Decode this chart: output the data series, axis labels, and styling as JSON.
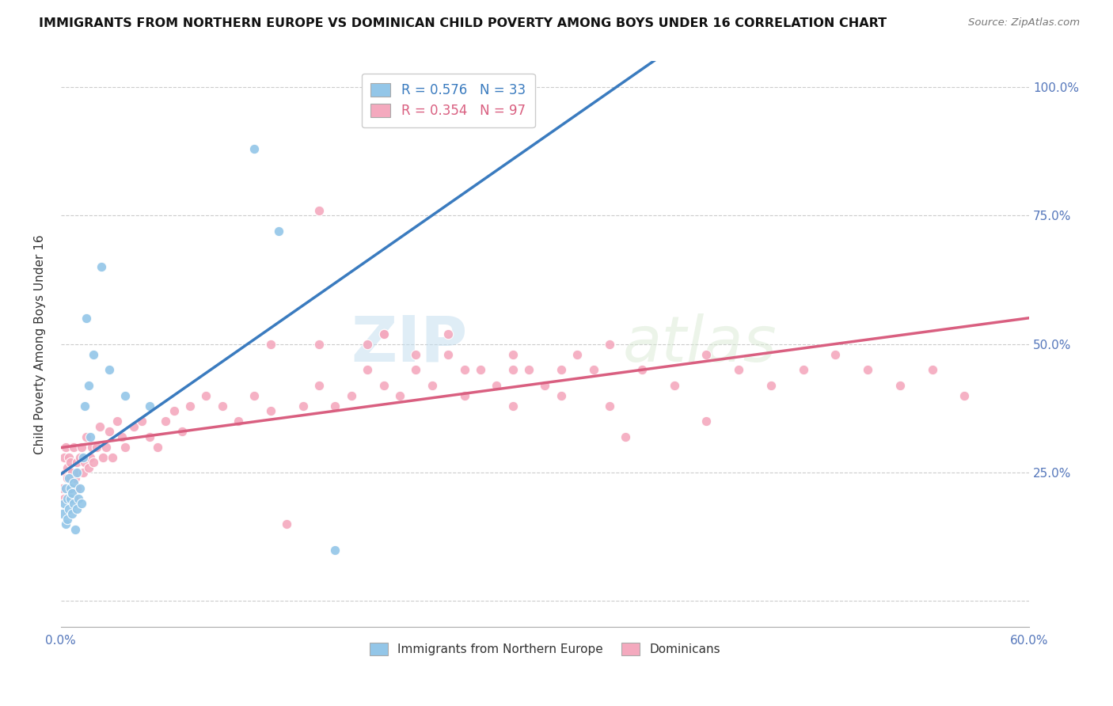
{
  "title": "IMMIGRANTS FROM NORTHERN EUROPE VS DOMINICAN CHILD POVERTY AMONG BOYS UNDER 16 CORRELATION CHART",
  "source": "Source: ZipAtlas.com",
  "ylabel": "Child Poverty Among Boys Under 16",
  "xlim": [
    0.0,
    0.6
  ],
  "ylim": [
    -0.05,
    1.05
  ],
  "xticks": [
    0.0,
    0.1,
    0.2,
    0.3,
    0.4,
    0.5,
    0.6
  ],
  "xticklabels": [
    "0.0%",
    "",
    "",
    "",
    "",
    "",
    "60.0%"
  ],
  "yticks": [
    0.0,
    0.25,
    0.5,
    0.75,
    1.0
  ],
  "yticklabels": [
    "",
    "25.0%",
    "50.0%",
    "75.0%",
    "100.0%"
  ],
  "blue_R": 0.576,
  "blue_N": 33,
  "pink_R": 0.354,
  "pink_N": 97,
  "blue_color": "#93c6e8",
  "pink_color": "#f4a9be",
  "blue_line_color": "#3a7bbf",
  "pink_line_color": "#d95f80",
  "legend_label_blue": "Immigrants from Northern Europe",
  "legend_label_pink": "Dominicans",
  "blue_scatter_x": [
    0.001,
    0.002,
    0.003,
    0.003,
    0.004,
    0.004,
    0.005,
    0.005,
    0.006,
    0.006,
    0.007,
    0.007,
    0.008,
    0.008,
    0.009,
    0.01,
    0.01,
    0.011,
    0.012,
    0.013,
    0.014,
    0.015,
    0.016,
    0.017,
    0.018,
    0.02,
    0.025,
    0.03,
    0.04,
    0.055,
    0.12,
    0.135,
    0.17
  ],
  "blue_scatter_y": [
    0.17,
    0.19,
    0.15,
    0.22,
    0.16,
    0.2,
    0.18,
    0.24,
    0.2,
    0.22,
    0.17,
    0.21,
    0.19,
    0.23,
    0.14,
    0.18,
    0.25,
    0.2,
    0.22,
    0.19,
    0.28,
    0.38,
    0.55,
    0.42,
    0.32,
    0.48,
    0.65,
    0.45,
    0.4,
    0.38,
    0.88,
    0.72,
    0.1
  ],
  "pink_scatter_x": [
    0.001,
    0.002,
    0.002,
    0.003,
    0.003,
    0.004,
    0.004,
    0.005,
    0.005,
    0.006,
    0.006,
    0.007,
    0.007,
    0.008,
    0.008,
    0.009,
    0.01,
    0.01,
    0.011,
    0.012,
    0.013,
    0.014,
    0.015,
    0.016,
    0.017,
    0.018,
    0.019,
    0.02,
    0.022,
    0.024,
    0.026,
    0.028,
    0.03,
    0.032,
    0.035,
    0.038,
    0.04,
    0.045,
    0.05,
    0.055,
    0.06,
    0.065,
    0.07,
    0.075,
    0.08,
    0.09,
    0.1,
    0.11,
    0.12,
    0.13,
    0.14,
    0.15,
    0.16,
    0.17,
    0.18,
    0.19,
    0.2,
    0.21,
    0.22,
    0.23,
    0.24,
    0.25,
    0.26,
    0.27,
    0.28,
    0.29,
    0.3,
    0.31,
    0.32,
    0.33,
    0.34,
    0.36,
    0.38,
    0.4,
    0.42,
    0.44,
    0.46,
    0.48,
    0.5,
    0.52,
    0.54,
    0.56,
    0.13,
    0.16,
    0.19,
    0.22,
    0.25,
    0.28,
    0.31,
    0.34,
    0.16,
    0.2,
    0.24,
    0.28,
    0.2,
    0.35,
    0.4
  ],
  "pink_scatter_y": [
    0.22,
    0.28,
    0.2,
    0.25,
    0.3,
    0.24,
    0.26,
    0.22,
    0.28,
    0.24,
    0.27,
    0.22,
    0.25,
    0.3,
    0.2,
    0.24,
    0.27,
    0.22,
    0.25,
    0.28,
    0.3,
    0.25,
    0.27,
    0.32,
    0.26,
    0.28,
    0.3,
    0.27,
    0.3,
    0.34,
    0.28,
    0.3,
    0.33,
    0.28,
    0.35,
    0.32,
    0.3,
    0.34,
    0.35,
    0.32,
    0.3,
    0.35,
    0.37,
    0.33,
    0.38,
    0.4,
    0.38,
    0.35,
    0.4,
    0.37,
    0.15,
    0.38,
    0.42,
    0.38,
    0.4,
    0.45,
    0.42,
    0.4,
    0.45,
    0.42,
    0.48,
    0.4,
    0.45,
    0.42,
    0.48,
    0.45,
    0.42,
    0.45,
    0.48,
    0.45,
    0.5,
    0.45,
    0.42,
    0.48,
    0.45,
    0.42,
    0.45,
    0.48,
    0.45,
    0.42,
    0.45,
    0.4,
    0.5,
    0.5,
    0.5,
    0.48,
    0.45,
    0.45,
    0.4,
    0.38,
    0.76,
    0.52,
    0.52,
    0.38,
    0.52,
    0.32,
    0.35
  ]
}
